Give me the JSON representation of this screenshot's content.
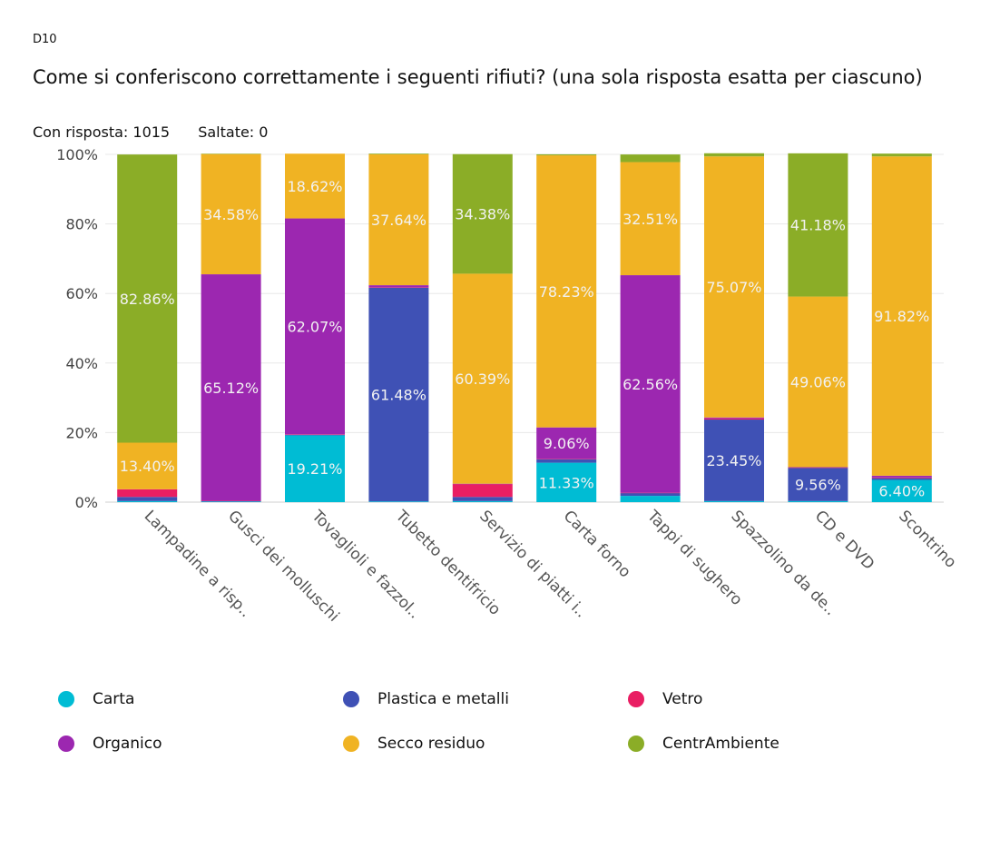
{
  "header": {
    "question_id": "D10",
    "title": "Come si conferiscono correttamente i seguenti rifiuti? (una sola risposta esatta per ciascuno)",
    "answered_label": "Con risposta: 1015",
    "skipped_label": "Saltate: 0"
  },
  "colors": {
    "Carta": "#00bcd4",
    "Plastica e metalli": "#3f51b5",
    "Vetro": "#e91e63",
    "Organico": "#9c27b0",
    "Secco residuo": "#f0b323",
    "CentrAmbiente": "#8bad27"
  },
  "chart_data": {
    "type": "bar",
    "stacked": true,
    "ylim": [
      0,
      100
    ],
    "yticks": [
      "0%",
      "20%",
      "40%",
      "60%",
      "80%",
      "100%"
    ],
    "grid": true,
    "legend_position": "bottom",
    "categories": [
      "Lampadine a risp..",
      "Gusci dei molluschi",
      "Tovaglioli e fazzol..",
      "Tubetto dentifricio",
      "Servizio di piatti i..",
      "Carta forno",
      "Tappi di sughero",
      "Spazzolino da de..",
      "CD e DVD",
      "Scontrino"
    ],
    "series": [
      {
        "name": "Carta",
        "values": [
          0.3,
          0.2,
          19.21,
          0.2,
          0.3,
          11.33,
          1.8,
          0.3,
          0.3,
          6.4
        ]
      },
      {
        "name": "Plastica e metalli",
        "values": [
          1.2,
          0.1,
          0.2,
          61.48,
          1.2,
          1.0,
          0.8,
          23.45,
          9.56,
          0.5
        ]
      },
      {
        "name": "Vetro",
        "values": [
          2.2,
          0.1,
          0.1,
          0.1,
          3.7,
          0.1,
          0.1,
          0.3,
          0.1,
          0.2
        ]
      },
      {
        "name": "Organico",
        "values": [
          0.0,
          65.12,
          62.07,
          0.6,
          0.1,
          9.06,
          62.56,
          0.3,
          0.1,
          0.5
        ]
      },
      {
        "name": "Secco residuo",
        "values": [
          13.4,
          34.58,
          18.62,
          37.64,
          60.39,
          78.23,
          32.51,
          75.07,
          49.06,
          91.82
        ]
      },
      {
        "name": "CentrAmbiente",
        "values": [
          82.86,
          0.1,
          0.0,
          0.2,
          34.38,
          0.3,
          2.2,
          0.9,
          41.18,
          0.8
        ]
      }
    ],
    "data_labels": [
      {
        "category": 0,
        "series": "Secco residuo",
        "text": "13.40%"
      },
      {
        "category": 0,
        "series": "CentrAmbiente",
        "text": "82.86%"
      },
      {
        "category": 1,
        "series": "Organico",
        "text": "65.12%"
      },
      {
        "category": 1,
        "series": "Secco residuo",
        "text": "34.58%"
      },
      {
        "category": 2,
        "series": "Carta",
        "text": "19.21%"
      },
      {
        "category": 2,
        "series": "Organico",
        "text": "62.07%"
      },
      {
        "category": 2,
        "series": "Secco residuo",
        "text": "18.62%"
      },
      {
        "category": 3,
        "series": "Plastica e metalli",
        "text": "61.48%"
      },
      {
        "category": 3,
        "series": "Secco residuo",
        "text": "37.64%"
      },
      {
        "category": 4,
        "series": "Secco residuo",
        "text": "60.39%"
      },
      {
        "category": 4,
        "series": "CentrAmbiente",
        "text": "34.38%"
      },
      {
        "category": 5,
        "series": "Carta",
        "text": "11.33%"
      },
      {
        "category": 5,
        "series": "Organico",
        "text": "9.06%"
      },
      {
        "category": 5,
        "series": "Secco residuo",
        "text": "78.23%"
      },
      {
        "category": 6,
        "series": "Organico",
        "text": "62.56%"
      },
      {
        "category": 6,
        "series": "Secco residuo",
        "text": "32.51%"
      },
      {
        "category": 7,
        "series": "Plastica e metalli",
        "text": "23.45%"
      },
      {
        "category": 7,
        "series": "Secco residuo",
        "text": "75.07%"
      },
      {
        "category": 8,
        "series": "Plastica e metalli",
        "text": "9.56%"
      },
      {
        "category": 8,
        "series": "Secco residuo",
        "text": "49.06%"
      },
      {
        "category": 8,
        "series": "CentrAmbiente",
        "text": "41.18%"
      },
      {
        "category": 9,
        "series": "Carta",
        "text": "6.40%"
      },
      {
        "category": 9,
        "series": "Secco residuo",
        "text": "91.82%"
      }
    ]
  },
  "legend": {
    "items": [
      "Carta",
      "Plastica e metalli",
      "Vetro",
      "Organico",
      "Secco residuo",
      "CentrAmbiente"
    ]
  }
}
